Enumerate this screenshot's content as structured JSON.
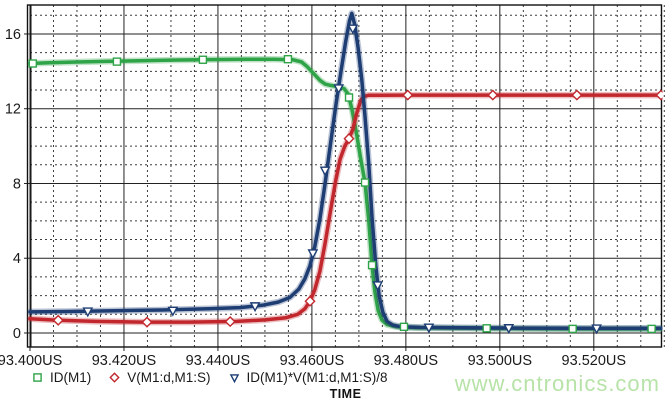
{
  "chart_data": {
    "type": "line",
    "title": "",
    "xlabel": "TIME",
    "x_unit": "US",
    "x_tick_labels": [
      "93.400US",
      "93.420US",
      "93.440US",
      "93.460US",
      "93.480US",
      "93.500US",
      "93.520US"
    ],
    "x_tick_values": [
      93.4,
      93.42,
      93.44,
      93.46,
      93.48,
      93.5,
      93.52
    ],
    "x_range": [
      93.4,
      93.5343
    ],
    "x_minor_step": 0.005,
    "y_tick_labels": [
      "0",
      "4",
      "8",
      "12",
      "16"
    ],
    "y_tick_values": [
      0,
      4,
      8,
      12,
      16
    ],
    "y_range": [
      -0.75,
      17.55
    ],
    "y_minor_step": 1,
    "grid": {
      "major": "solid",
      "minor": "dashed"
    },
    "legend_position": "bottom-left",
    "series": [
      {
        "name": "ID(M1)",
        "color": "#2fa347",
        "marker": "square",
        "points": [
          [
            93.4,
            14.42
          ],
          [
            93.404,
            14.46
          ],
          [
            93.41,
            14.5
          ],
          [
            93.416,
            14.53
          ],
          [
            93.422,
            14.56
          ],
          [
            93.43,
            14.6
          ],
          [
            93.438,
            14.63
          ],
          [
            93.446,
            14.65
          ],
          [
            93.452,
            14.65
          ],
          [
            93.456,
            14.62
          ],
          [
            93.4578,
            14.5
          ],
          [
            93.459,
            14.25
          ],
          [
            93.4603,
            13.9
          ],
          [
            93.4617,
            13.52
          ],
          [
            93.4628,
            13.32
          ],
          [
            93.464,
            13.25
          ],
          [
            93.4655,
            13.18
          ],
          [
            93.4668,
            13.08
          ],
          [
            93.4677,
            12.8
          ],
          [
            93.4685,
            12.0
          ],
          [
            93.4694,
            10.8
          ],
          [
            93.4704,
            9.3
          ],
          [
            93.4713,
            8.05
          ],
          [
            93.4721,
            6.0
          ],
          [
            93.4728,
            3.63
          ],
          [
            93.4734,
            2.2
          ],
          [
            93.4741,
            1.2
          ],
          [
            93.4749,
            0.7
          ],
          [
            93.476,
            0.45
          ],
          [
            93.478,
            0.33
          ],
          [
            93.482,
            0.28
          ],
          [
            93.49,
            0.26
          ],
          [
            93.5,
            0.24
          ],
          [
            93.515,
            0.22
          ],
          [
            93.5343,
            0.22
          ]
        ],
        "marker_points": [
          [
            93.4006,
            14.42
          ],
          [
            93.4185,
            14.52
          ],
          [
            93.4368,
            14.62
          ],
          [
            93.4549,
            14.65
          ],
          [
            93.4679,
            12.6
          ],
          [
            93.4713,
            8.05
          ],
          [
            93.4728,
            3.63
          ],
          [
            93.4796,
            0.33
          ],
          [
            93.4972,
            0.25
          ],
          [
            93.5155,
            0.22
          ],
          [
            93.5323,
            0.22
          ]
        ]
      },
      {
        "name": "V(M1:d,M1:S)",
        "color": "#c1272d",
        "marker": "diamond",
        "points": [
          [
            93.4,
            0.76
          ],
          [
            93.406,
            0.68
          ],
          [
            93.414,
            0.62
          ],
          [
            93.424,
            0.58
          ],
          [
            93.434,
            0.58
          ],
          [
            93.444,
            0.62
          ],
          [
            93.45,
            0.7
          ],
          [
            93.4545,
            0.82
          ],
          [
            93.457,
            1.0
          ],
          [
            93.4585,
            1.3
          ],
          [
            93.4596,
            1.7
          ],
          [
            93.4606,
            2.3
          ],
          [
            93.4617,
            3.3
          ],
          [
            93.4628,
            4.8
          ],
          [
            93.464,
            6.6
          ],
          [
            93.4651,
            8.2
          ],
          [
            93.466,
            9.3
          ],
          [
            93.467,
            10.0
          ],
          [
            93.4679,
            10.4
          ],
          [
            93.4687,
            10.9
          ],
          [
            93.4696,
            11.8
          ],
          [
            93.4704,
            12.45
          ],
          [
            93.471,
            12.65
          ],
          [
            93.472,
            12.72
          ],
          [
            93.48,
            12.73
          ],
          [
            93.5,
            12.73
          ],
          [
            93.52,
            12.73
          ],
          [
            93.5343,
            12.73
          ]
        ],
        "marker_points": [
          [
            93.406,
            0.68
          ],
          [
            93.4249,
            0.58
          ],
          [
            93.4426,
            0.61
          ],
          [
            93.4596,
            1.7
          ],
          [
            93.4679,
            10.4
          ],
          [
            93.4804,
            12.73
          ],
          [
            93.4985,
            12.73
          ],
          [
            93.5164,
            12.73
          ],
          [
            93.5343,
            12.73
          ]
        ]
      },
      {
        "name": "ID(M1)*V(M1:d,M1:S)/8",
        "color": "#1d3d73",
        "marker": "triangle-down",
        "points": [
          [
            93.4,
            1.13
          ],
          [
            93.408,
            1.15
          ],
          [
            93.418,
            1.19
          ],
          [
            93.428,
            1.23
          ],
          [
            93.438,
            1.3
          ],
          [
            93.4447,
            1.36
          ],
          [
            93.4494,
            1.48
          ],
          [
            93.4528,
            1.65
          ],
          [
            93.4553,
            1.9
          ],
          [
            93.4572,
            2.35
          ],
          [
            93.4585,
            2.9
          ],
          [
            93.4596,
            3.6
          ],
          [
            93.4606,
            4.6
          ],
          [
            93.4617,
            6.1
          ],
          [
            93.4628,
            8.0
          ],
          [
            93.464,
            10.2
          ],
          [
            93.4651,
            12.2
          ],
          [
            93.4662,
            14.0
          ],
          [
            93.4672,
            15.6
          ],
          [
            93.468,
            16.7
          ],
          [
            93.4685,
            17.1
          ],
          [
            93.4691,
            16.5
          ],
          [
            93.4698,
            15.3
          ],
          [
            93.4706,
            13.6
          ],
          [
            93.4713,
            11.6
          ],
          [
            93.4721,
            9.0
          ],
          [
            93.4728,
            6.2
          ],
          [
            93.4736,
            3.6
          ],
          [
            93.4743,
            2.0
          ],
          [
            93.4751,
            1.1
          ],
          [
            93.476,
            0.62
          ],
          [
            93.4772,
            0.42
          ],
          [
            93.479,
            0.33
          ],
          [
            93.483,
            0.3
          ],
          [
            93.492,
            0.28
          ],
          [
            93.505,
            0.26
          ],
          [
            93.52,
            0.25
          ],
          [
            93.5343,
            0.25
          ]
        ],
        "marker_points": [
          [
            93.4123,
            1.16
          ],
          [
            93.4304,
            1.2
          ],
          [
            93.4479,
            1.44
          ],
          [
            93.4602,
            4.27
          ],
          [
            93.4628,
            8.7
          ],
          [
            93.4657,
            13.1
          ],
          [
            93.4687,
            16.3
          ],
          [
            93.474,
            2.56
          ],
          [
            93.4849,
            0.3
          ],
          [
            93.5019,
            0.27
          ],
          [
            93.5206,
            0.25
          ]
        ]
      }
    ]
  },
  "watermark": {
    "text": "www.cntronics.com",
    "color": "#b7e3a8"
  }
}
